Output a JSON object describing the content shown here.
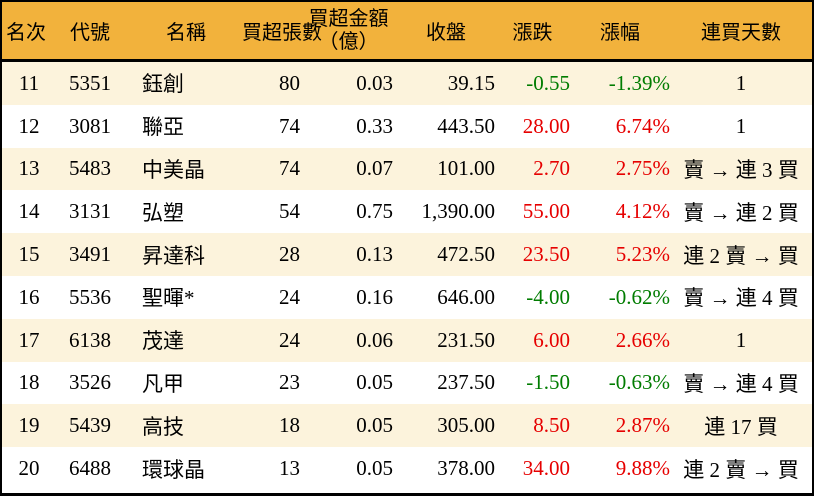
{
  "chart_data": {
    "type": "table",
    "header": {
      "rank": "名次",
      "code": "代號",
      "name": "名稱",
      "volume": "買超張數",
      "amount_line1": "買超金額",
      "amount_line2": "（億）",
      "close": "收盤",
      "change": "漲跌",
      "pct": "漲幅",
      "streak": "連買天數"
    },
    "rows": [
      {
        "rank": "11",
        "code": "5351",
        "name": "鈺創",
        "volume": "80",
        "amount": "0.03",
        "close": "39.15",
        "change": "-0.55",
        "pct": "-1.39%",
        "streak": "1",
        "trend": "down"
      },
      {
        "rank": "12",
        "code": "3081",
        "name": "聯亞",
        "volume": "74",
        "amount": "0.33",
        "close": "443.50",
        "change": "28.00",
        "pct": "6.74%",
        "streak": "1",
        "trend": "up"
      },
      {
        "rank": "13",
        "code": "5483",
        "name": "中美晶",
        "volume": "74",
        "amount": "0.07",
        "close": "101.00",
        "change": "2.70",
        "pct": "2.75%",
        "streak": "賣 → 連 3 買",
        "trend": "up"
      },
      {
        "rank": "14",
        "code": "3131",
        "name": "弘塑",
        "volume": "54",
        "amount": "0.75",
        "close": "1,390.00",
        "change": "55.00",
        "pct": "4.12%",
        "streak": "賣 → 連 2 買",
        "trend": "up"
      },
      {
        "rank": "15",
        "code": "3491",
        "name": "昇達科",
        "volume": "28",
        "amount": "0.13",
        "close": "472.50",
        "change": "23.50",
        "pct": "5.23%",
        "streak": "連 2 賣 → 買",
        "trend": "up"
      },
      {
        "rank": "16",
        "code": "5536",
        "name": "聖暉*",
        "volume": "24",
        "amount": "0.16",
        "close": "646.00",
        "change": "-4.00",
        "pct": "-0.62%",
        "streak": "賣 → 連 4 買",
        "trend": "down"
      },
      {
        "rank": "17",
        "code": "6138",
        "name": "茂達",
        "volume": "24",
        "amount": "0.06",
        "close": "231.50",
        "change": "6.00",
        "pct": "2.66%",
        "streak": "1",
        "trend": "up"
      },
      {
        "rank": "18",
        "code": "3526",
        "name": "凡甲",
        "volume": "23",
        "amount": "0.05",
        "close": "237.50",
        "change": "-1.50",
        "pct": "-0.63%",
        "streak": "賣 → 連 4 買",
        "trend": "down"
      },
      {
        "rank": "19",
        "code": "5439",
        "name": "高技",
        "volume": "18",
        "amount": "0.05",
        "close": "305.00",
        "change": "8.50",
        "pct": "2.87%",
        "streak": "連 17 買",
        "trend": "up"
      },
      {
        "rank": "20",
        "code": "6488",
        "name": "環球晶",
        "volume": "13",
        "amount": "0.05",
        "close": "378.00",
        "change": "34.00",
        "pct": "9.88%",
        "streak": "連 2 賣 → 買",
        "trend": "up"
      }
    ],
    "colors": {
      "header_bg": "#F2B23C",
      "row_alt_bg": "#FCF3DC",
      "row_bg": "#FFFFFF",
      "up_red": "#E60000",
      "down_green": "#007C00",
      "border": "#000000"
    },
    "layout": {
      "grid": false,
      "alternating_rows": true,
      "up_color_meaning": "price increase (Taiwan convention: red = up)",
      "down_color_meaning": "price decrease (green = down)"
    }
  }
}
